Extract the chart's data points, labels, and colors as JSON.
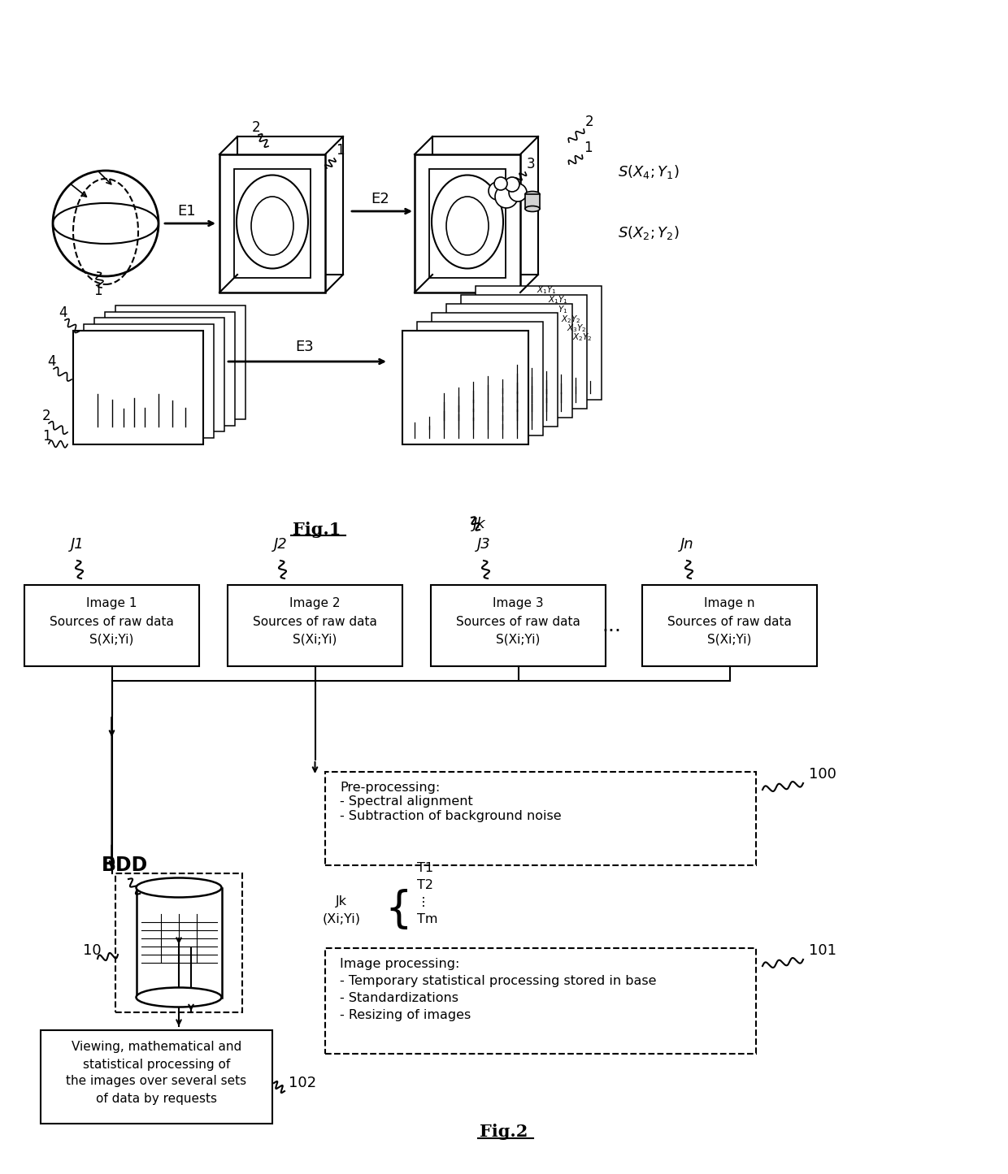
{
  "fig_label1": "Fig.1",
  "fig_label2": "Fig.2",
  "background_color": "#ffffff",
  "line_color": "#000000",
  "preprocessing_label": "Pre-processing:\n- Spectral alignment\n- Subtraction of background noise",
  "preprocessing_ref": "100",
  "jk_label": "Jk\n(Xi;Yi)",
  "t_label": "T1\nT2\n⋮\nTm",
  "image_processing_label": "Image processing:\n- Temporary statistical processing stored in base\n- Standardizations\n- Resizing of images",
  "image_processing_ref": "101",
  "viewing_label": "Viewing, mathematical and\nstatistical processing of\nthe images over several sets\nof data by requests",
  "viewing_ref": "102",
  "bdd_label": "BDD",
  "db_ref": "10",
  "box_labels": [
    "Image 1\nSources of raw data\nS(Xi;Yi)",
    "Image 2\nSources of raw data\nS(Xi;Yi)",
    "Image 3\nSources of raw data\nS(Xi;Yi)",
    "Image n\nSources of raw data\nS(Xi;Yi)"
  ],
  "j_labels": [
    "J1",
    "J2",
    "J3",
    "Jn"
  ]
}
